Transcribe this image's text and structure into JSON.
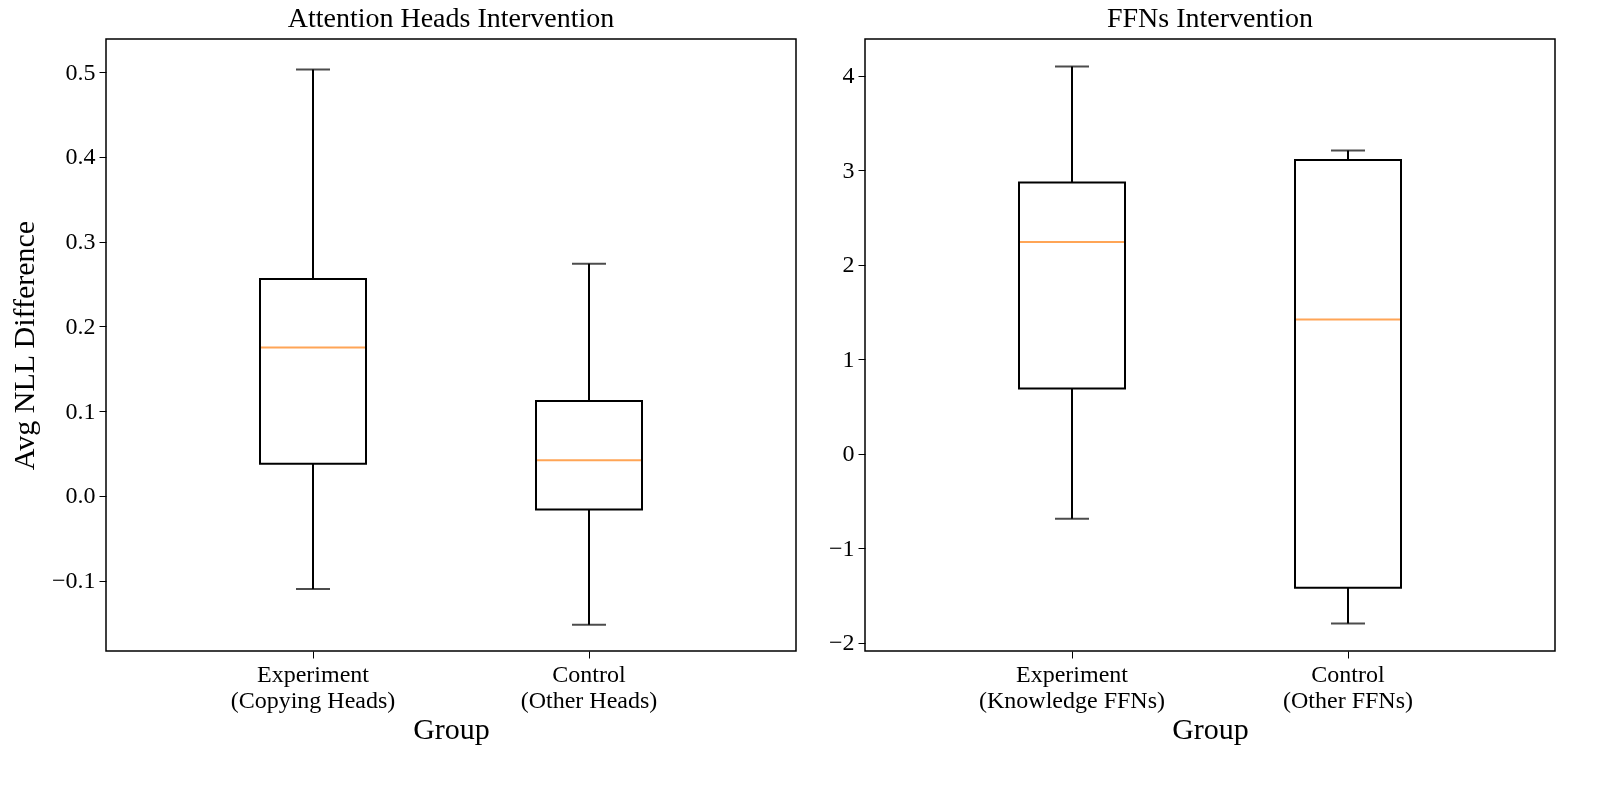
{
  "chart_data": [
    {
      "type": "box",
      "title": "Attention Heads Intervention",
      "xlabel": "Group",
      "ylabel": "Avg NLL Difference",
      "categories": [
        "Experiment\n(Copying Heads)",
        "Control\n(Other Heads)"
      ],
      "boxes": [
        {
          "low": -0.11,
          "q1": 0.038,
          "median": 0.175,
          "q3": 0.256,
          "high": 0.503
        },
        {
          "low": -0.152,
          "q1": -0.016,
          "median": 0.042,
          "q3": 0.112,
          "high": 0.274
        }
      ],
      "ylim": [
        -0.183,
        0.539
      ],
      "yticks": [
        {
          "value": -0.1,
          "label": "−0.1"
        },
        {
          "value": 0,
          "label": "0.0"
        },
        0.1,
        0.2,
        0.3,
        0.4,
        0.5
      ],
      "grid": false
    },
    {
      "type": "box",
      "title": "FFNs Intervention",
      "xlabel": "Group",
      "categories": [
        "Experiment\n(Knowledge FFNs)",
        "Control\n(Other FFNs)"
      ],
      "boxes": [
        {
          "low": -0.69,
          "q1": 0.69,
          "median": 2.24,
          "q3": 2.87,
          "high": 4.1
        },
        {
          "low": -1.8,
          "q1": -1.42,
          "median": 1.42,
          "q3": 3.11,
          "high": 3.21
        }
      ],
      "ylim": [
        -2.09,
        4.39
      ],
      "yticks": [
        {
          "value": -2,
          "label": "−2"
        },
        {
          "value": -1,
          "label": "−1"
        },
        0,
        1,
        2,
        3,
        4
      ],
      "grid": false
    }
  ]
}
